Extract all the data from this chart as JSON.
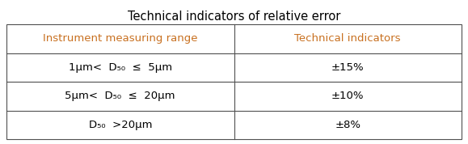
{
  "title": "Technical indicators of relative error",
  "title_color": "#000000",
  "title_fontsize": 10.5,
  "header_row": [
    "Instrument measuring range",
    "Technical indicators"
  ],
  "header_color": "#c87020",
  "data_rows": [
    [
      "1μm<  D₅₀  ≤  5μm",
      "±15%"
    ],
    [
      "5μm<  D₅₀  ≤  20μm",
      "±10%"
    ],
    [
      "D₅₀  >20μm",
      "±8%"
    ]
  ],
  "data_color": "#000000",
  "background_color": "#ffffff",
  "border_color": "#505050",
  "header_fontsize": 9.5,
  "data_fontsize": 9.5,
  "fig_width": 5.79,
  "fig_height": 1.78,
  "dpi": 100
}
